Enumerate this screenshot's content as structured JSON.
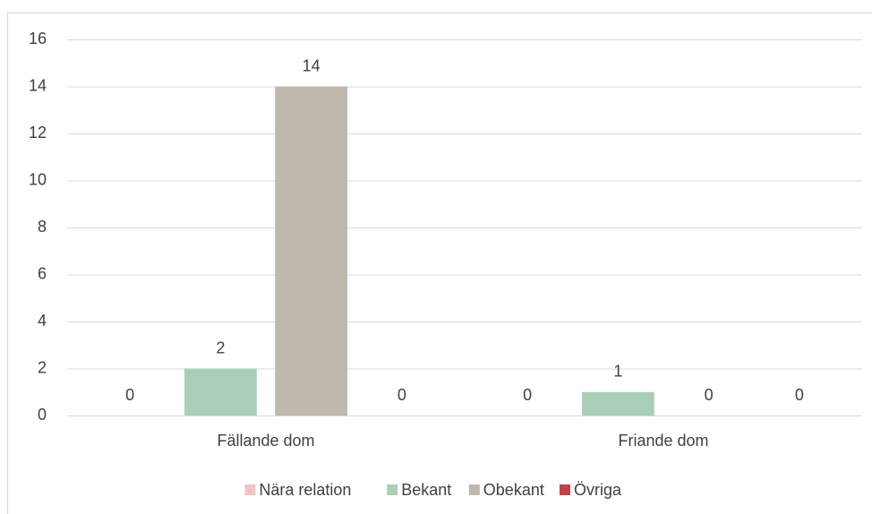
{
  "chart_data": {
    "type": "bar",
    "categories": [
      "Fällande dom",
      "Friande dom"
    ],
    "series": [
      {
        "name": "Nära relation",
        "color": "#f2c4c8",
        "values": [
          0,
          0
        ]
      },
      {
        "name": "Bekant",
        "color": "#a9cfb8",
        "values": [
          2,
          1
        ]
      },
      {
        "name": "Obekant",
        "color": "#bfb8ac",
        "values": [
          14,
          0
        ]
      },
      {
        "name": "Övriga",
        "color": "#c0404a",
        "values": [
          0,
          0
        ]
      }
    ],
    "ylim": [
      0,
      16
    ],
    "yticks": [
      0,
      2,
      4,
      6,
      8,
      10,
      12,
      14,
      16
    ],
    "grid": true,
    "legend": "bottom"
  }
}
